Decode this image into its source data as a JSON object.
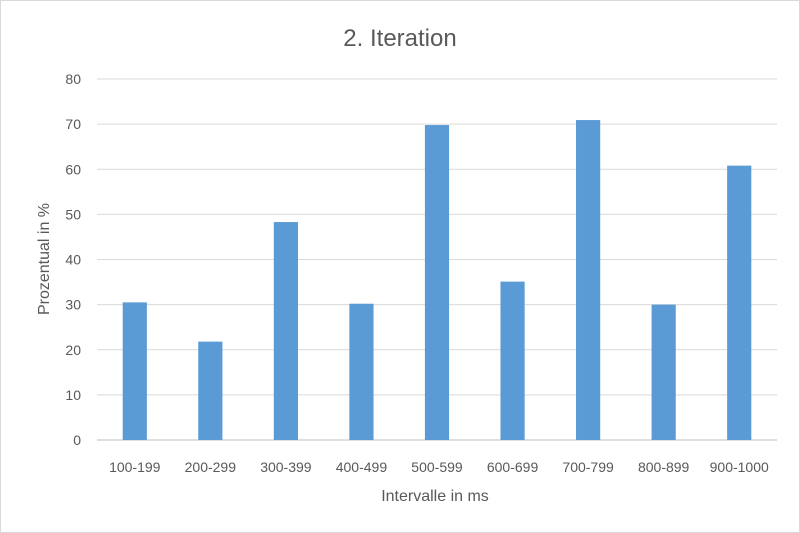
{
  "chart_data": {
    "type": "bar",
    "title": "2. Iteration",
    "xlabel": "Intervalle in ms",
    "ylabel": "Prozentual in %",
    "categories": [
      "100-199",
      "200-299",
      "300-399",
      "400-499",
      "500-599",
      "600-699",
      "700-799",
      "800-899",
      "900-1000"
    ],
    "values": [
      30.5,
      21.8,
      48.3,
      30.2,
      69.8,
      35.1,
      70.9,
      30.0,
      60.8
    ],
    "ylim": [
      0,
      80
    ],
    "yticks": [
      "0",
      "10",
      "20",
      "30",
      "40",
      "50",
      "60",
      "70",
      "80"
    ],
    "grid": true,
    "legend": "none",
    "bar_color": "#5b9bd5"
  }
}
